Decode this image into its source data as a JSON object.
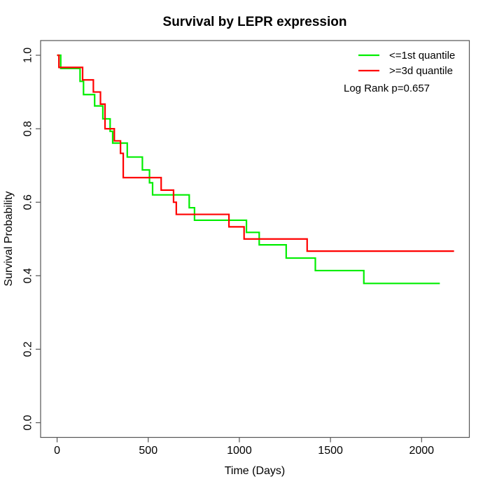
{
  "title": "Survival by LEPR expression",
  "chart_data": {
    "type": "line",
    "subtype": "kaplan-meier-step",
    "title": "Survival by LEPR expression",
    "xlabel": "Time (Days)",
    "ylabel": "Survival Probability",
    "x_ticks": [
      0,
      500,
      1000,
      1500,
      2000
    ],
    "x_tick_labels": [
      "0",
      "500",
      "1000",
      "1500",
      "2000"
    ],
    "y_ticks": [
      0.0,
      0.2,
      0.4,
      0.6,
      0.8,
      1.0
    ],
    "y_tick_labels": [
      "0.0",
      "0.2",
      "0.4",
      "0.6",
      "0.8",
      "1.0"
    ],
    "xlim": [
      -90.5,
      2262
    ],
    "ylim": [
      -0.04,
      1.04
    ],
    "grid": false,
    "legend_position": "top-right",
    "annotation": "Log Rank p=0.657",
    "axis_color": "#555555",
    "line_width": 2.2,
    "series": [
      {
        "name": "<=1st quantile",
        "color": "#00ee00",
        "start": [
          0,
          1.0
        ],
        "events": [
          [
            20,
            0.964
          ],
          [
            126,
            0.929
          ],
          [
            145,
            0.893
          ],
          [
            206,
            0.862
          ],
          [
            251,
            0.827
          ],
          [
            291,
            0.793
          ],
          [
            305,
            0.761
          ],
          [
            385,
            0.723
          ],
          [
            468,
            0.688
          ],
          [
            507,
            0.653
          ],
          [
            524,
            0.62
          ],
          [
            725,
            0.585
          ],
          [
            754,
            0.551
          ],
          [
            1039,
            0.518
          ],
          [
            1109,
            0.484
          ],
          [
            1257,
            0.448
          ],
          [
            1417,
            0.414
          ],
          [
            1683,
            0.379
          ]
        ],
        "end_time": 2100
      },
      {
        "name": ">=3d quantile",
        "color": "#ff0000",
        "start": [
          0,
          1.0
        ],
        "events": [
          [
            10,
            0.967
          ],
          [
            140,
            0.933
          ],
          [
            199,
            0.9
          ],
          [
            238,
            0.867
          ],
          [
            263,
            0.8
          ],
          [
            314,
            0.767
          ],
          [
            348,
            0.733
          ],
          [
            363,
            0.667
          ],
          [
            571,
            0.633
          ],
          [
            639,
            0.6
          ],
          [
            654,
            0.567
          ],
          [
            943,
            0.533
          ],
          [
            1026,
            0.5
          ],
          [
            1372,
            0.467
          ]
        ],
        "end_time": 2178
      }
    ]
  },
  "legend": {
    "items": [
      {
        "label": "<=1st quantile",
        "color": "#00ee00"
      },
      {
        "label": ">=3d quantile",
        "color": "#ff0000"
      }
    ],
    "annotation": "Log Rank p=0.657"
  }
}
